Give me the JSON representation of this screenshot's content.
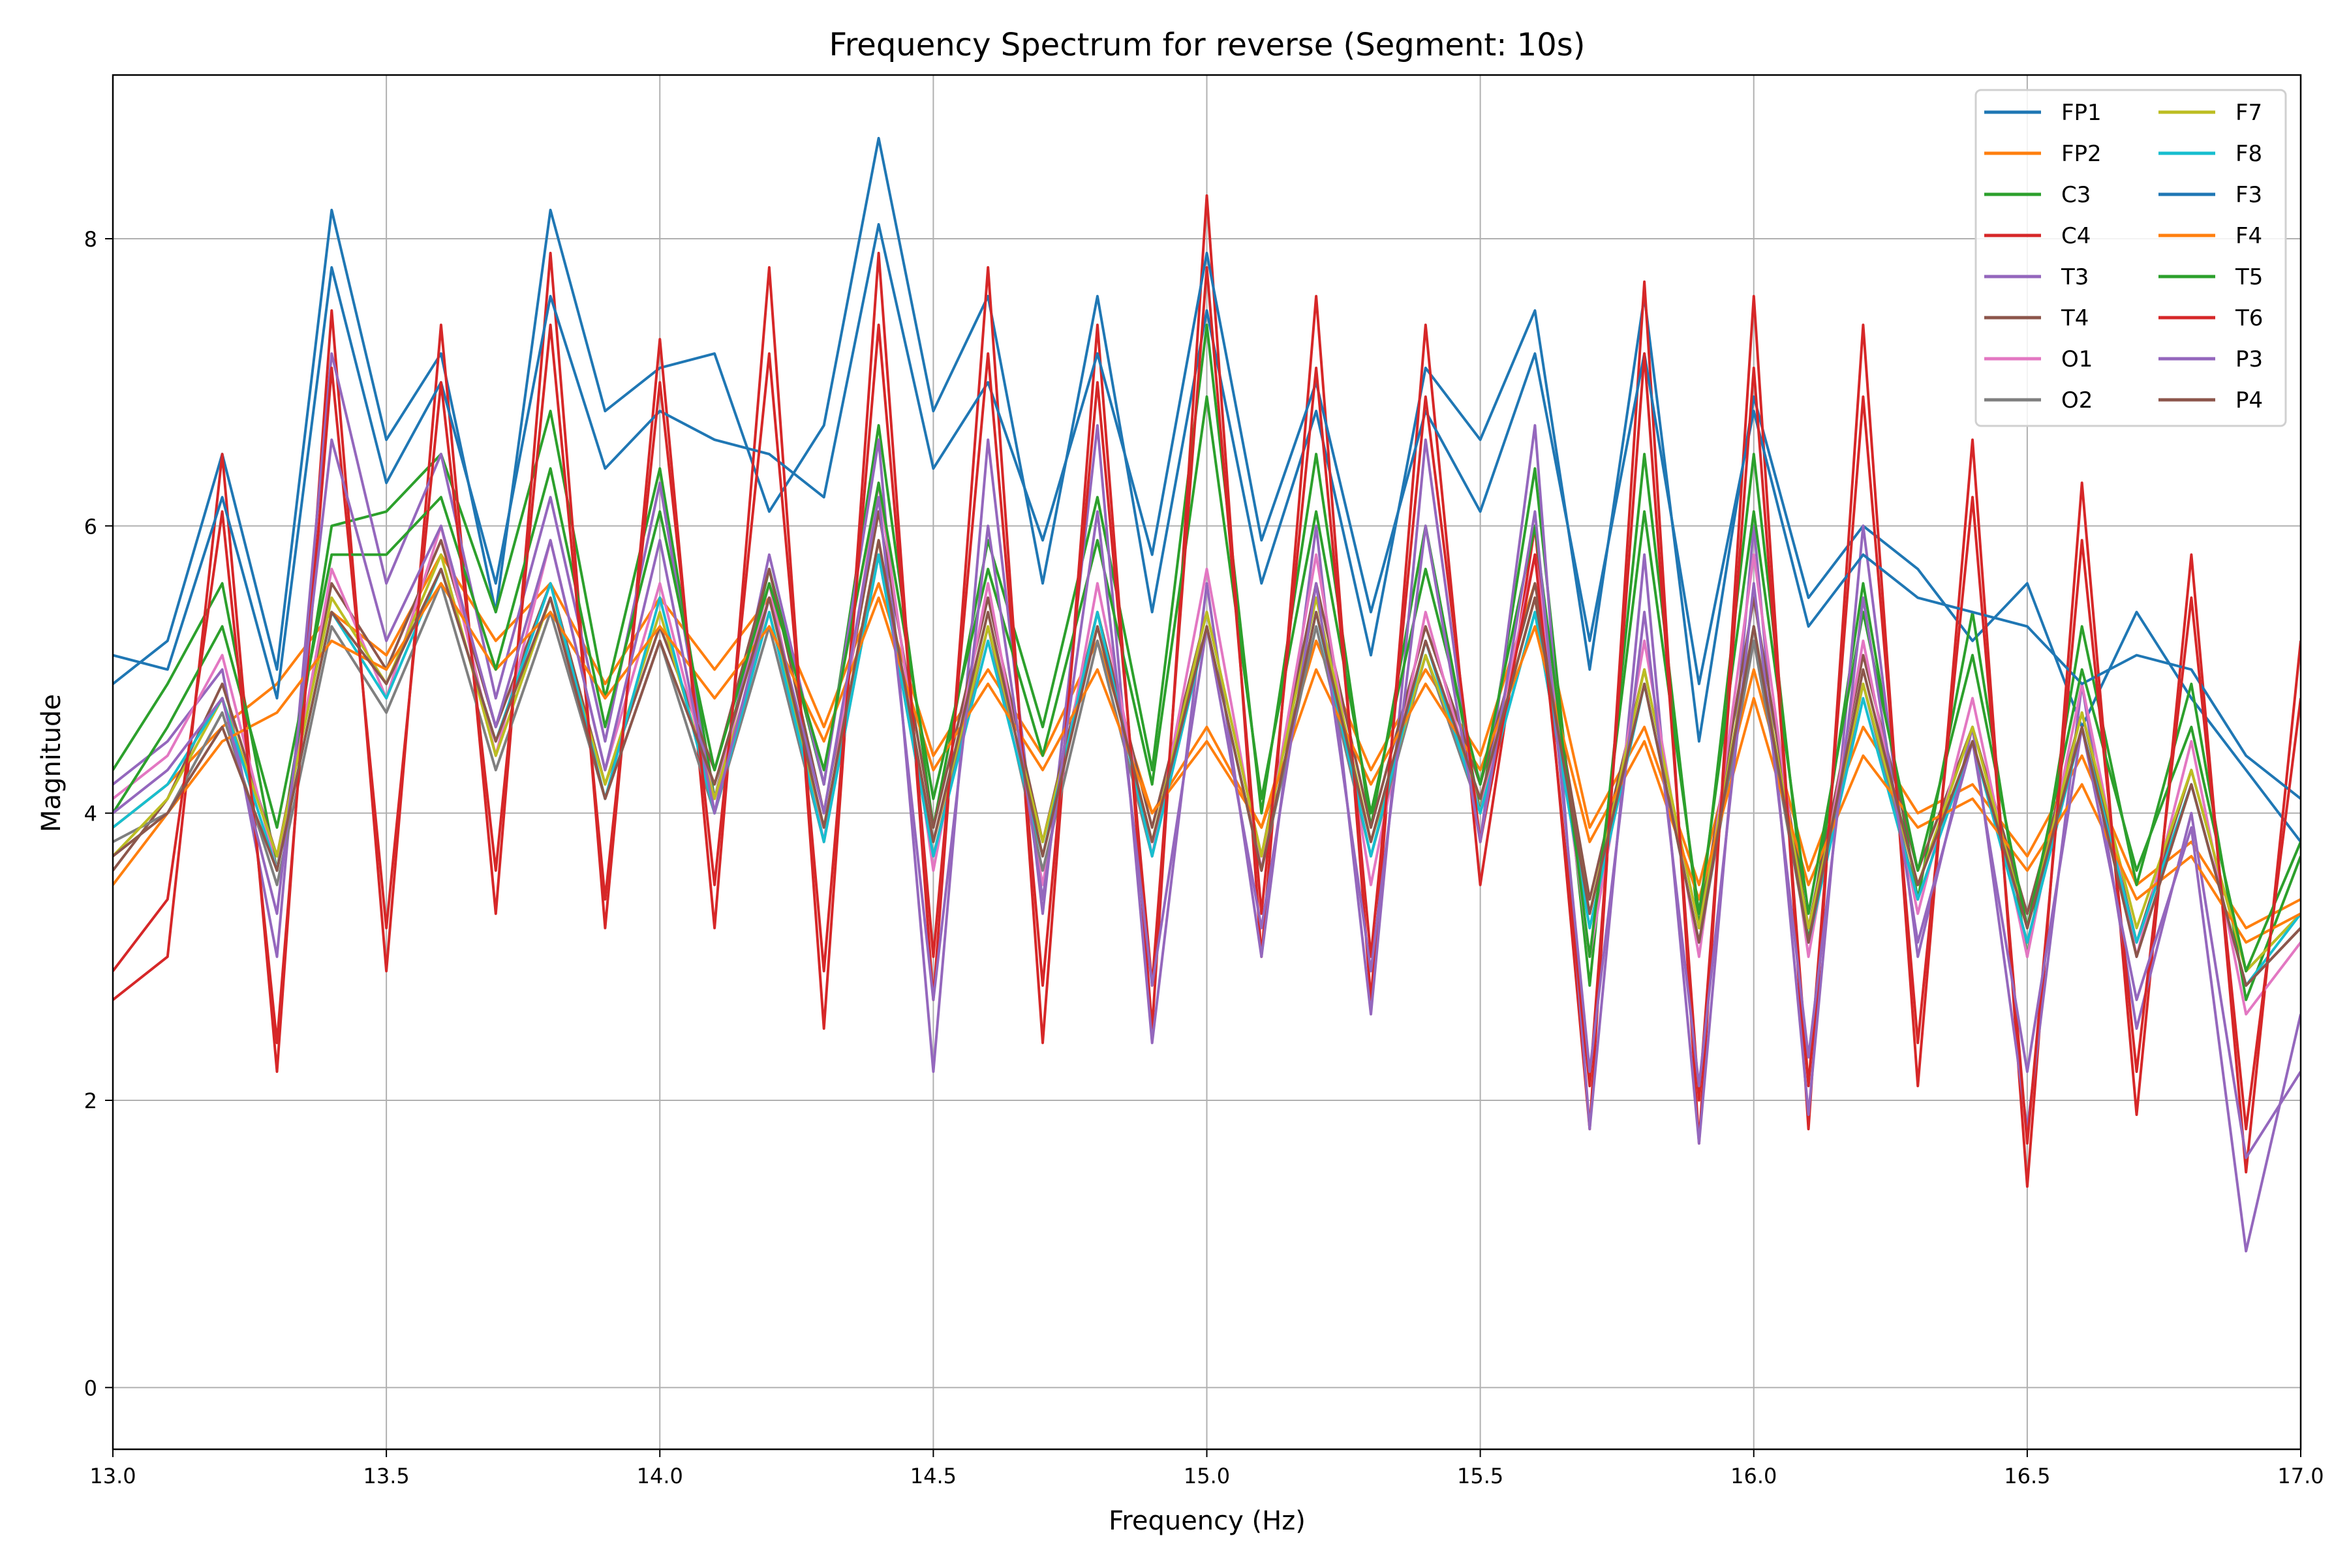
{
  "chart_data": {
    "type": "line",
    "title": "Frequency Spectrum for reverse (Segment: 10s)",
    "xlabel": "Frequency (Hz)",
    "ylabel": "Magnitude",
    "xlim": [
      13.0,
      17.0
    ],
    "ylim": [
      -0.43,
      9.14
    ],
    "xticks": [
      13.0,
      13.5,
      14.0,
      14.5,
      15.0,
      15.5,
      16.0,
      16.5,
      17.0
    ],
    "xtick_labels": [
      "13.0",
      "13.5",
      "14.0",
      "14.5",
      "15.0",
      "15.5",
      "16.0",
      "16.5",
      "17.0"
    ],
    "yticks": [
      0,
      2,
      4,
      6,
      8
    ],
    "ytick_labels": [
      "0",
      "2",
      "4",
      "6",
      "8"
    ],
    "grid": true,
    "legend_position": "top-right",
    "legend_columns": 2,
    "x": [
      13.0,
      13.1,
      13.2,
      13.3,
      13.4,
      13.5,
      13.6,
      13.7,
      13.8,
      13.9,
      14.0,
      14.1,
      14.2,
      14.3,
      14.4,
      14.5,
      14.6,
      14.7,
      14.8,
      14.9,
      15.0,
      15.1,
      15.2,
      15.3,
      15.4,
      15.5,
      15.6,
      15.7,
      15.8,
      15.9,
      16.0,
      16.1,
      16.2,
      16.3,
      16.4,
      16.5,
      16.6,
      16.7,
      16.8,
      16.9,
      17.0
    ],
    "series": [
      {
        "name": "FP1",
        "color": "#1f77b4",
        "values": [
          4.9,
          5.2,
          6.5,
          5.0,
          8.2,
          6.6,
          7.2,
          5.4,
          8.2,
          6.8,
          7.1,
          7.2,
          6.1,
          6.7,
          8.7,
          6.8,
          7.6,
          5.6,
          7.6,
          5.4,
          7.5,
          5.6,
          6.8,
          5.1,
          7.1,
          6.6,
          7.5,
          5.0,
          7.6,
          4.5,
          6.9,
          5.5,
          6.0,
          5.7,
          5.2,
          5.6,
          4.6,
          5.4,
          4.8,
          4.3,
          3.8
        ]
      },
      {
        "name": "FP2",
        "color": "#ff7f0e",
        "values": [
          3.9,
          4.2,
          4.6,
          4.9,
          5.4,
          5.1,
          5.8,
          5.2,
          5.6,
          4.9,
          5.5,
          5.0,
          5.5,
          4.6,
          5.6,
          4.4,
          5.0,
          4.4,
          5.2,
          4.0,
          4.6,
          3.9,
          5.2,
          4.3,
          5.0,
          4.4,
          5.6,
          3.9,
          4.6,
          3.5,
          5.0,
          3.6,
          4.6,
          4.0,
          4.2,
          3.7,
          4.4,
          3.5,
          3.8,
          3.2,
          3.4
        ]
      },
      {
        "name": "C3",
        "color": "#2ca02c",
        "values": [
          4.3,
          4.9,
          5.6,
          3.6,
          6.0,
          6.1,
          6.5,
          5.4,
          6.8,
          4.8,
          6.4,
          4.1,
          5.7,
          4.2,
          6.7,
          3.9,
          5.9,
          4.6,
          6.2,
          4.3,
          7.4,
          4.0,
          6.5,
          3.9,
          6.0,
          4.0,
          6.4,
          2.8,
          6.5,
          3.2,
          6.5,
          3.1,
          5.6,
          3.4,
          5.4,
          3.0,
          5.3,
          3.5,
          4.9,
          2.7,
          3.7
        ]
      },
      {
        "name": "C4",
        "color": "#d62728",
        "values": [
          2.7,
          3.0,
          6.5,
          2.2,
          7.5,
          2.9,
          7.4,
          3.3,
          7.9,
          3.2,
          7.3,
          3.2,
          7.8,
          2.5,
          7.9,
          2.7,
          7.8,
          2.4,
          7.4,
          2.5,
          8.3,
          3.0,
          7.6,
          2.7,
          7.4,
          3.5,
          6.0,
          1.8,
          7.7,
          1.7,
          7.6,
          1.8,
          7.4,
          2.1,
          6.6,
          1.4,
          6.3,
          1.9,
          5.8,
          1.5,
          5.2
        ]
      },
      {
        "name": "T3",
        "color": "#9467bd",
        "values": [
          4.2,
          4.5,
          5.0,
          3.0,
          7.2,
          5.6,
          6.5,
          4.8,
          6.2,
          4.5,
          6.3,
          4.0,
          5.8,
          4.2,
          6.6,
          2.2,
          6.6,
          3.3,
          6.7,
          2.4,
          5.6,
          3.0,
          6.0,
          2.6,
          6.6,
          3.8,
          6.7,
          1.8,
          5.8,
          1.7,
          6.0,
          1.9,
          6.0,
          3.0,
          4.6,
          1.8,
          4.9,
          2.5,
          4.0,
          1.6,
          2.2
        ]
      },
      {
        "name": "T4",
        "color": "#8c564b",
        "values": [
          3.6,
          4.1,
          4.9,
          3.7,
          5.6,
          5.0,
          5.9,
          4.6,
          5.6,
          4.2,
          5.3,
          4.3,
          5.7,
          4.0,
          6.1,
          3.9,
          5.5,
          3.8,
          5.4,
          3.9,
          5.4,
          3.7,
          5.6,
          3.9,
          5.3,
          4.2,
          5.6,
          3.4,
          5.0,
          3.2,
          5.5,
          3.2,
          5.1,
          3.6,
          4.6,
          3.3,
          4.7,
          3.1,
          4.3,
          2.9,
          3.3
        ]
      },
      {
        "name": "O1",
        "color": "#e377c2",
        "values": [
          4.1,
          4.4,
          5.1,
          3.6,
          5.7,
          4.8,
          6.0,
          4.4,
          5.9,
          4.3,
          5.6,
          4.1,
          5.6,
          3.8,
          6.3,
          3.6,
          5.6,
          3.5,
          5.6,
          3.7,
          5.7,
          3.6,
          5.8,
          3.5,
          5.4,
          4.0,
          5.8,
          3.0,
          5.2,
          3.0,
          5.8,
          3.0,
          5.2,
          3.3,
          4.8,
          3.0,
          4.9,
          3.0,
          4.5,
          2.6,
          3.1
        ]
      },
      {
        "name": "O2",
        "color": "#7f7f7f",
        "values": [
          3.8,
          4.0,
          4.7,
          3.5,
          5.3,
          4.7,
          5.6,
          4.3,
          5.4,
          4.1,
          5.2,
          4.0,
          5.3,
          3.8,
          5.8,
          3.7,
          5.3,
          3.6,
          5.2,
          3.7,
          5.3,
          3.6,
          5.3,
          3.7,
          5.1,
          4.0,
          5.4,
          3.2,
          4.9,
          3.1,
          5.2,
          3.1,
          4.9,
          3.4,
          4.5,
          3.1,
          4.6,
          3.1,
          4.2,
          2.8,
          3.2
        ]
      },
      {
        "name": "F7",
        "color": "#bcbd22",
        "values": [
          3.7,
          4.1,
          4.8,
          3.7,
          5.5,
          4.9,
          5.8,
          4.4,
          5.5,
          4.2,
          5.4,
          4.1,
          5.4,
          3.9,
          5.9,
          3.8,
          5.3,
          3.8,
          5.3,
          3.8,
          5.4,
          3.7,
          5.5,
          3.8,
          5.1,
          4.1,
          5.5,
          3.3,
          5.0,
          3.2,
          5.3,
          3.2,
          4.9,
          3.5,
          4.6,
          3.2,
          4.7,
          3.2,
          4.3,
          2.9,
          3.3
        ]
      },
      {
        "name": "F8",
        "color": "#17becf",
        "values": [
          3.9,
          4.2,
          4.8,
          3.6,
          5.4,
          4.8,
          5.7,
          4.5,
          5.6,
          4.1,
          5.5,
          4.0,
          5.4,
          3.8,
          5.8,
          3.7,
          5.2,
          3.7,
          5.4,
          3.7,
          5.3,
          3.6,
          5.4,
          3.7,
          5.2,
          4.0,
          5.4,
          3.2,
          4.9,
          3.1,
          5.3,
          3.1,
          4.8,
          3.4,
          4.5,
          3.1,
          4.6,
          3.1,
          4.2,
          2.8,
          3.3
        ]
      },
      {
        "name": "F3",
        "color": "#1f77b4",
        "values": [
          5.1,
          5.0,
          6.2,
          4.8,
          7.8,
          6.3,
          7.0,
          5.6,
          7.6,
          6.4,
          6.8,
          6.6,
          6.5,
          6.2,
          8.1,
          6.4,
          7.0,
          5.9,
          7.2,
          5.8,
          7.9,
          5.9,
          7.0,
          5.4,
          6.8,
          6.1,
          7.2,
          5.2,
          7.2,
          4.9,
          6.8,
          5.3,
          5.8,
          5.5,
          5.4,
          5.3,
          4.9,
          5.1,
          5.0,
          4.4,
          4.1
        ]
      },
      {
        "name": "F4",
        "color": "#ff7f0e",
        "values": [
          3.5,
          4.0,
          4.5,
          4.7,
          5.2,
          5.0,
          5.6,
          5.0,
          5.4,
          4.8,
          5.3,
          4.8,
          5.3,
          4.5,
          5.5,
          4.3,
          4.9,
          4.3,
          5.0,
          4.0,
          4.5,
          3.9,
          5.0,
          4.2,
          4.9,
          4.3,
          5.3,
          3.8,
          4.5,
          3.4,
          4.8,
          3.5,
          4.4,
          3.9,
          4.1,
          3.6,
          4.2,
          3.4,
          3.7,
          3.1,
          3.3
        ]
      },
      {
        "name": "T5",
        "color": "#2ca02c",
        "values": [
          4.0,
          4.6,
          5.3,
          3.9,
          5.8,
          5.8,
          6.2,
          5.0,
          6.4,
          4.6,
          6.1,
          4.3,
          5.6,
          4.3,
          6.3,
          4.1,
          5.7,
          4.4,
          5.9,
          4.2,
          6.9,
          4.1,
          6.1,
          4.0,
          5.7,
          4.2,
          6.0,
          3.0,
          6.1,
          3.3,
          6.1,
          3.3,
          5.4,
          3.6,
          5.1,
          3.2,
          5.0,
          3.6,
          4.6,
          2.9,
          3.8
        ]
      },
      {
        "name": "T6",
        "color": "#d62728",
        "values": [
          2.9,
          3.4,
          6.1,
          2.4,
          7.1,
          3.2,
          7.0,
          3.6,
          7.4,
          3.4,
          7.0,
          3.5,
          7.2,
          2.9,
          7.4,
          3.0,
          7.2,
          2.8,
          7.0,
          2.8,
          7.8,
          3.3,
          7.1,
          3.0,
          6.9,
          3.8,
          5.8,
          2.1,
          7.2,
          2.0,
          7.1,
          2.1,
          6.9,
          2.4,
          6.2,
          1.7,
          5.9,
          2.2,
          5.5,
          1.8,
          4.8
        ]
      },
      {
        "name": "P3",
        "color": "#9467bd",
        "values": [
          4.0,
          4.3,
          4.8,
          3.3,
          6.6,
          5.2,
          6.0,
          4.6,
          5.9,
          4.3,
          5.9,
          4.0,
          5.5,
          4.0,
          6.2,
          2.7,
          6.0,
          3.4,
          6.1,
          2.8,
          5.3,
          3.2,
          5.6,
          2.9,
          6.0,
          3.8,
          6.1,
          2.2,
          5.4,
          2.1,
          5.6,
          2.3,
          5.5,
          3.1,
          4.5,
          2.2,
          4.6,
          2.7,
          3.9,
          0.95,
          2.6
        ]
      },
      {
        "name": "P4",
        "color": "#8c564b",
        "values": [
          3.7,
          4.0,
          4.6,
          3.6,
          5.4,
          4.9,
          5.7,
          4.5,
          5.5,
          4.1,
          5.2,
          4.2,
          5.5,
          3.9,
          5.9,
          3.8,
          5.4,
          3.7,
          5.3,
          3.8,
          5.3,
          3.6,
          5.4,
          3.8,
          5.2,
          4.1,
          5.5,
          3.3,
          4.9,
          3.1,
          5.3,
          3.1,
          5.0,
          3.5,
          4.5,
          3.2,
          4.6,
          3.0,
          4.2,
          2.8,
          3.2
        ]
      }
    ]
  }
}
